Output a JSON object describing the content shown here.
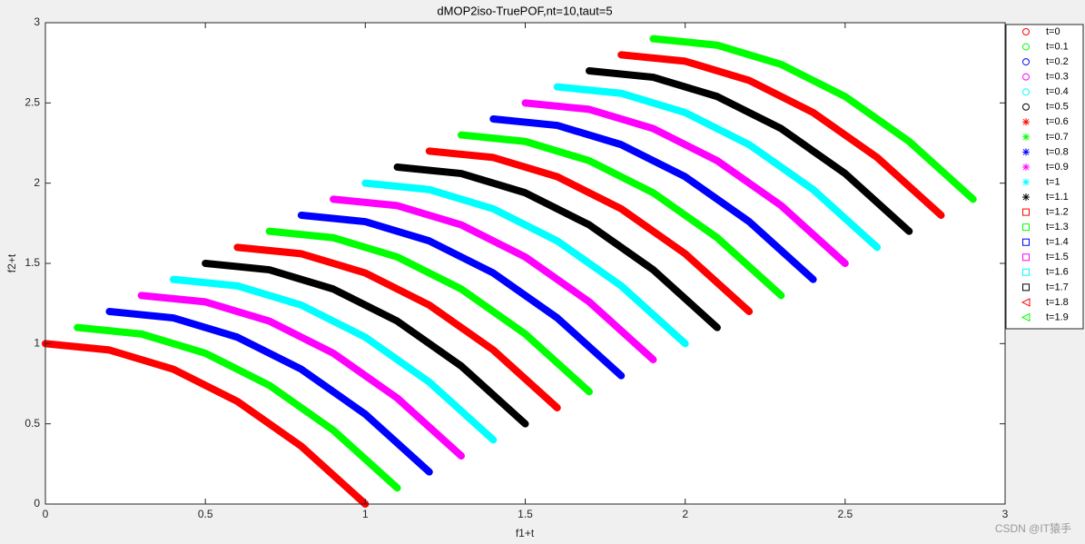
{
  "chart_data": {
    "type": "line",
    "title": "dMOP2iso-TruePOF,nt=10,taut=5",
    "x_label": "f1+t",
    "y_label": "f2+t",
    "xlim": [
      0,
      3
    ],
    "ylim": [
      0,
      3
    ],
    "xticks": [
      0,
      0.5,
      1,
      1.5,
      2,
      2.5,
      3
    ],
    "yticks": [
      0,
      0.5,
      1,
      1.5,
      2,
      2.5,
      3
    ],
    "legend": "upper right outside",
    "watermark": "CSDN @IT猿手",
    "series": [
      {
        "name": "t=0",
        "color": "#ff0000",
        "marker": "o",
        "x": [
          0,
          0.2,
          0.4,
          0.6,
          0.8,
          1
        ],
        "y": [
          1,
          0.96,
          0.84,
          0.64,
          0.36,
          0
        ]
      },
      {
        "name": "t=0.1",
        "color": "#00ff00",
        "marker": "o",
        "x": [
          0.1,
          0.3,
          0.5,
          0.7,
          0.9,
          1.1
        ],
        "y": [
          1.1,
          1.06,
          0.94,
          0.74,
          0.46,
          0.1
        ]
      },
      {
        "name": "t=0.2",
        "color": "#0000ff",
        "marker": "o",
        "x": [
          0.2,
          0.4,
          0.6,
          0.8,
          1,
          1.2
        ],
        "y": [
          1.2,
          1.16,
          1.04,
          0.84,
          0.56,
          0.2
        ]
      },
      {
        "name": "t=0.3",
        "color": "#ff00ff",
        "marker": "o",
        "x": [
          0.3,
          0.5,
          0.7,
          0.9,
          1.1,
          1.3
        ],
        "y": [
          1.3,
          1.26,
          1.14,
          0.94,
          0.66,
          0.3
        ]
      },
      {
        "name": "t=0.4",
        "color": "#00ffff",
        "marker": "o",
        "x": [
          0.4,
          0.6,
          0.8,
          1,
          1.2,
          1.4
        ],
        "y": [
          1.4,
          1.36,
          1.24,
          1.04,
          0.76,
          0.4
        ]
      },
      {
        "name": "t=0.5",
        "color": "#000000",
        "marker": "o",
        "x": [
          0.5,
          0.7,
          0.9,
          1.1,
          1.3,
          1.5
        ],
        "y": [
          1.5,
          1.46,
          1.34,
          1.14,
          0.86,
          0.5
        ]
      },
      {
        "name": "t=0.6",
        "color": "#ff0000",
        "marker": "*",
        "x": [
          0.6,
          0.8,
          1,
          1.2,
          1.4,
          1.6
        ],
        "y": [
          1.6,
          1.56,
          1.44,
          1.24,
          0.96,
          0.6
        ]
      },
      {
        "name": "t=0.7",
        "color": "#00ff00",
        "marker": "*",
        "x": [
          0.7,
          0.9,
          1.1,
          1.3,
          1.5,
          1.7
        ],
        "y": [
          1.7,
          1.66,
          1.54,
          1.34,
          1.06,
          0.7
        ]
      },
      {
        "name": "t=0.8",
        "color": "#0000ff",
        "marker": "*",
        "x": [
          0.8,
          1,
          1.2,
          1.4,
          1.6,
          1.8
        ],
        "y": [
          1.8,
          1.76,
          1.64,
          1.44,
          1.16,
          0.8
        ]
      },
      {
        "name": "t=0.9",
        "color": "#ff00ff",
        "marker": "*",
        "x": [
          0.9,
          1.1,
          1.3,
          1.5,
          1.7,
          1.9
        ],
        "y": [
          1.9,
          1.86,
          1.74,
          1.54,
          1.26,
          0.9
        ]
      },
      {
        "name": "t=1",
        "color": "#00ffff",
        "marker": "*",
        "x": [
          1,
          1.2,
          1.4,
          1.6,
          1.8,
          2
        ],
        "y": [
          2,
          1.96,
          1.84,
          1.64,
          1.36,
          1
        ]
      },
      {
        "name": "t=1.1",
        "color": "#000000",
        "marker": "*",
        "x": [
          1.1,
          1.3,
          1.5,
          1.7,
          1.9,
          2.1
        ],
        "y": [
          2.1,
          2.06,
          1.94,
          1.74,
          1.46,
          1.1
        ]
      },
      {
        "name": "t=1.2",
        "color": "#ff0000",
        "marker": "s",
        "x": [
          1.2,
          1.4,
          1.6,
          1.8,
          2,
          2.2
        ],
        "y": [
          2.2,
          2.16,
          2.04,
          1.84,
          1.56,
          1.2
        ]
      },
      {
        "name": "t=1.3",
        "color": "#00ff00",
        "marker": "s",
        "x": [
          1.3,
          1.5,
          1.7,
          1.9,
          2.1,
          2.3
        ],
        "y": [
          2.3,
          2.26,
          2.14,
          1.94,
          1.66,
          1.3
        ]
      },
      {
        "name": "t=1.4",
        "color": "#0000ff",
        "marker": "s",
        "x": [
          1.4,
          1.6,
          1.8,
          2,
          2.2,
          2.4
        ],
        "y": [
          2.4,
          2.36,
          2.24,
          2.04,
          1.76,
          1.4
        ]
      },
      {
        "name": "t=1.5",
        "color": "#ff00ff",
        "marker": "s",
        "x": [
          1.5,
          1.7,
          1.9,
          2.1,
          2.3,
          2.5
        ],
        "y": [
          2.5,
          2.46,
          2.34,
          2.14,
          1.86,
          1.5
        ]
      },
      {
        "name": "t=1.6",
        "color": "#00ffff",
        "marker": "s",
        "x": [
          1.6,
          1.8,
          2,
          2.2,
          2.4,
          2.6
        ],
        "y": [
          2.6,
          2.56,
          2.44,
          2.24,
          1.96,
          1.6
        ]
      },
      {
        "name": "t=1.7",
        "color": "#000000",
        "marker": "s",
        "x": [
          1.7,
          1.9,
          2.1,
          2.3,
          2.5,
          2.7
        ],
        "y": [
          2.7,
          2.66,
          2.54,
          2.34,
          2.06,
          1.7
        ]
      },
      {
        "name": "t=1.8",
        "color": "#ff0000",
        "marker": "<",
        "x": [
          1.8,
          2,
          2.2,
          2.4,
          2.6,
          2.8
        ],
        "y": [
          2.8,
          2.76,
          2.64,
          2.44,
          2.16,
          1.8
        ]
      },
      {
        "name": "t=1.9",
        "color": "#00ff00",
        "marker": "<",
        "x": [
          1.9,
          2.1,
          2.3,
          2.5,
          2.7,
          2.9
        ],
        "y": [
          2.9,
          2.86,
          2.74,
          2.54,
          2.26,
          1.9
        ]
      }
    ]
  }
}
